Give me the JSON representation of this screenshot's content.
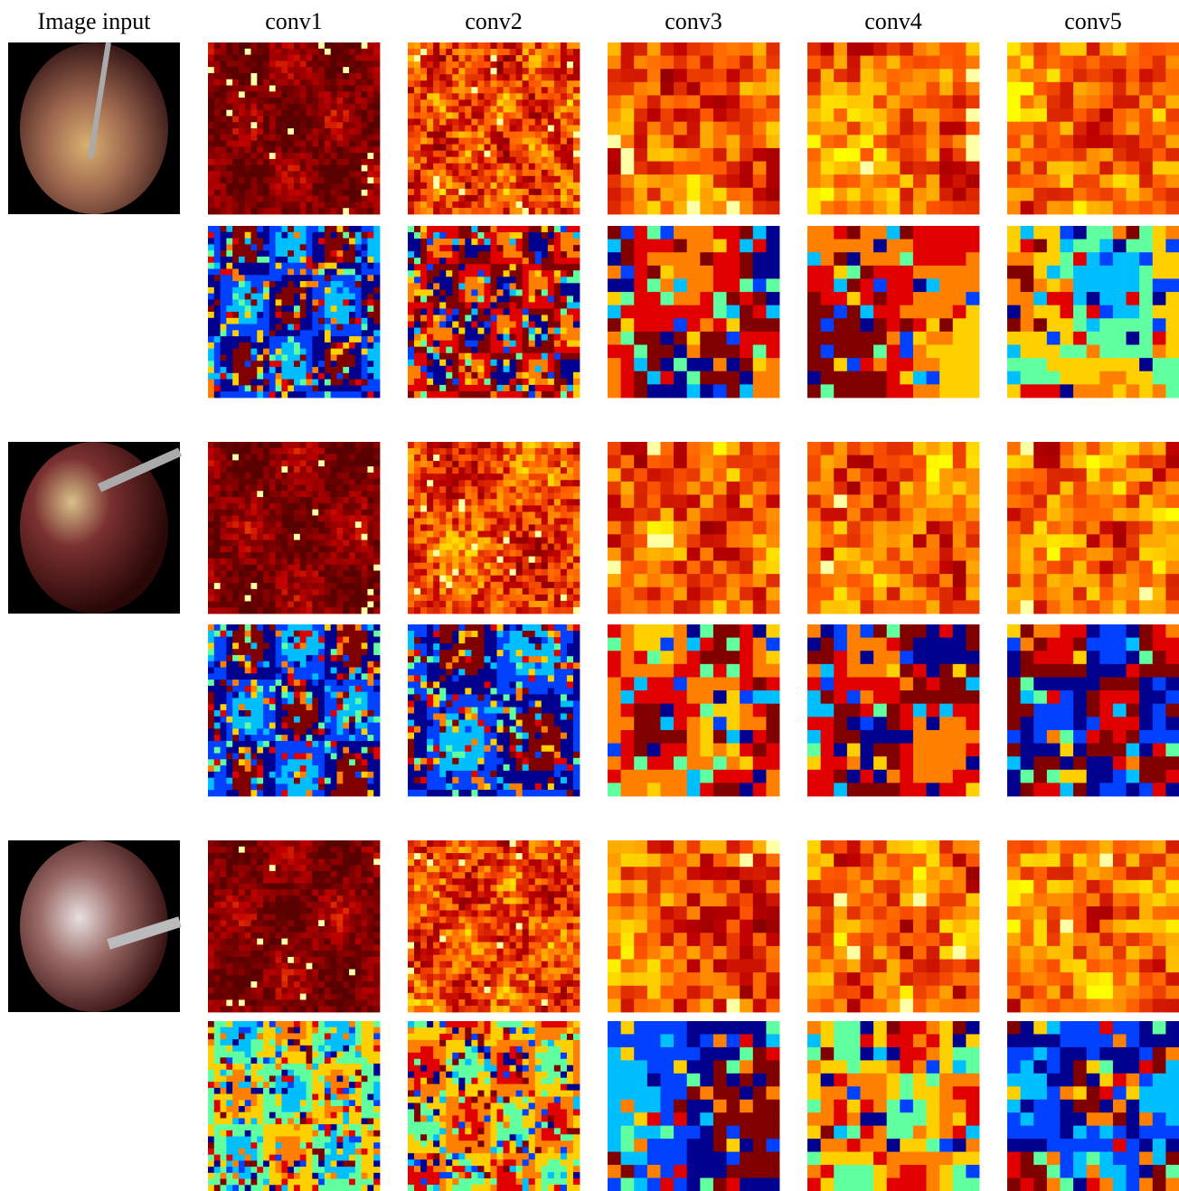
{
  "headers": [
    "Image input",
    "conv1",
    "conv2",
    "conv3",
    "conv4",
    "conv5"
  ]
}
